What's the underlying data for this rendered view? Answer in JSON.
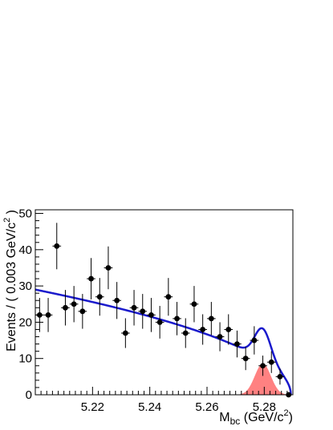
{
  "chart_data": {
    "type": "scatter",
    "title": "",
    "xlabel": "M_bc (GeV/c^2)",
    "ylabel": "Events / ( 0.003 GeV/c^2 )",
    "xlim": [
      5.2,
      5.29
    ],
    "ylim": [
      0,
      51
    ],
    "x_ticks": [
      5.22,
      5.24,
      5.26,
      5.28
    ],
    "x_tick_labels": [
      "5.22",
      "5.24",
      "5.26",
      "5.28"
    ],
    "y_ticks": [
      0,
      10,
      20,
      30,
      40,
      50
    ],
    "y_tick_labels": [
      "0",
      "10",
      "20",
      "30",
      "40",
      "50"
    ],
    "grid": false,
    "bin_half_width": 0.0015,
    "data_points": [
      {
        "x": 5.2015,
        "y": 22,
        "err": 4.7
      },
      {
        "x": 5.2045,
        "y": 22,
        "err": 4.7
      },
      {
        "x": 5.2075,
        "y": 41,
        "err": 6.4
      },
      {
        "x": 5.2105,
        "y": 24,
        "err": 4.9
      },
      {
        "x": 5.2135,
        "y": 25,
        "err": 5.0
      },
      {
        "x": 5.2165,
        "y": 23,
        "err": 4.8
      },
      {
        "x": 5.2195,
        "y": 32,
        "err": 5.7
      },
      {
        "x": 5.2225,
        "y": 27,
        "err": 5.2
      },
      {
        "x": 5.2255,
        "y": 35,
        "err": 5.9
      },
      {
        "x": 5.2285,
        "y": 26,
        "err": 5.1
      },
      {
        "x": 5.2315,
        "y": 17,
        "err": 4.1
      },
      {
        "x": 5.2345,
        "y": 24,
        "err": 4.9
      },
      {
        "x": 5.2375,
        "y": 23,
        "err": 4.8
      },
      {
        "x": 5.2405,
        "y": 22,
        "err": 4.7
      },
      {
        "x": 5.2435,
        "y": 20,
        "err": 4.5
      },
      {
        "x": 5.2465,
        "y": 27,
        "err": 5.2
      },
      {
        "x": 5.2495,
        "y": 21,
        "err": 4.6
      },
      {
        "x": 5.2525,
        "y": 17,
        "err": 4.1
      },
      {
        "x": 5.2555,
        "y": 25,
        "err": 5.0
      },
      {
        "x": 5.2585,
        "y": 18,
        "err": 4.2
      },
      {
        "x": 5.2615,
        "y": 21,
        "err": 4.6
      },
      {
        "x": 5.2645,
        "y": 16,
        "err": 4.0
      },
      {
        "x": 5.2675,
        "y": 18,
        "err": 4.2
      },
      {
        "x": 5.2705,
        "y": 14,
        "err": 3.7
      },
      {
        "x": 5.2735,
        "y": 10,
        "err": 3.2
      },
      {
        "x": 5.2765,
        "y": 15,
        "err": 3.9
      },
      {
        "x": 5.2795,
        "y": 8,
        "err": 2.8
      },
      {
        "x": 5.2825,
        "y": 9,
        "err": 3.0
      },
      {
        "x": 5.2855,
        "y": 5,
        "err": 2.2
      },
      {
        "x": 5.2885,
        "y": 0,
        "err": 0
      }
    ],
    "fit_curve": {
      "color": "#1a1acc",
      "argus_norm": 29,
      "endpoint": 5.2893,
      "signal": {
        "mean": 5.2795,
        "sigma": 0.0028,
        "amp": 8.6
      }
    },
    "signal_component": {
      "color": "#ff6b6b",
      "mean": 5.2795,
      "sigma": 0.0028,
      "amp": 8.6
    }
  }
}
